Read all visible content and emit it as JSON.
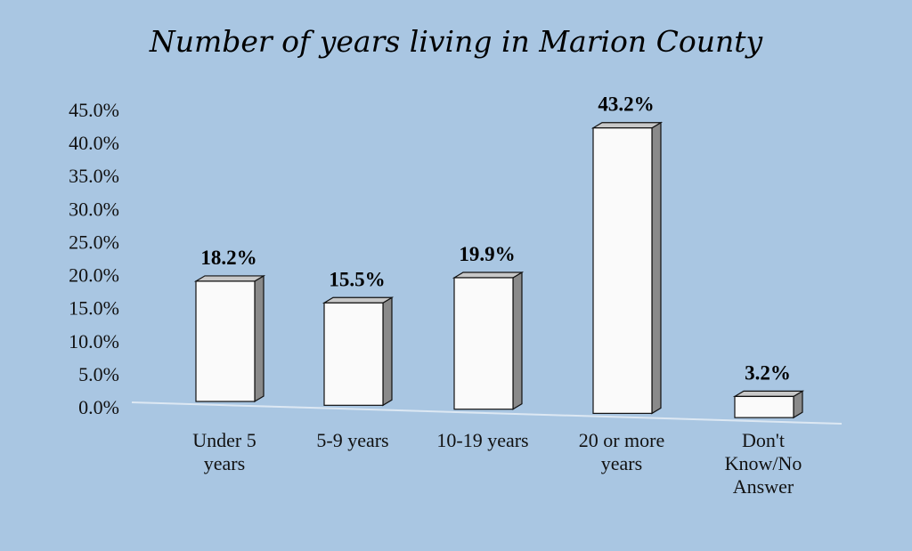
{
  "chart_data": {
    "type": "bar",
    "title": "Number of years living in Marion County",
    "categories": [
      [
        "Under 5",
        "years"
      ],
      [
        "5-9 years"
      ],
      [
        "10-19 years"
      ],
      [
        "20 or more",
        "years"
      ],
      [
        "Don't",
        "Know/No",
        "Answer"
      ]
    ],
    "values": [
      18.2,
      15.5,
      19.9,
      43.2,
      3.2
    ],
    "data_labels": [
      "18.2%",
      "15.5%",
      "19.9%",
      "43.2%",
      "3.2%"
    ],
    "y_ticks": [
      "0.0%",
      "5.0%",
      "10.0%",
      "15.0%",
      "20.0%",
      "25.0%",
      "30.0%",
      "35.0%",
      "40.0%",
      "45.0%"
    ],
    "ylim": [
      0,
      45
    ],
    "grid": false,
    "legend": "none",
    "colors": {
      "background": "#a9c6e2",
      "bar_front": "#fafafa",
      "bar_side": "#8a8a8a",
      "bar_top": "#c8c8c8",
      "outline": "#111111",
      "floor": "#dde8f3"
    }
  }
}
